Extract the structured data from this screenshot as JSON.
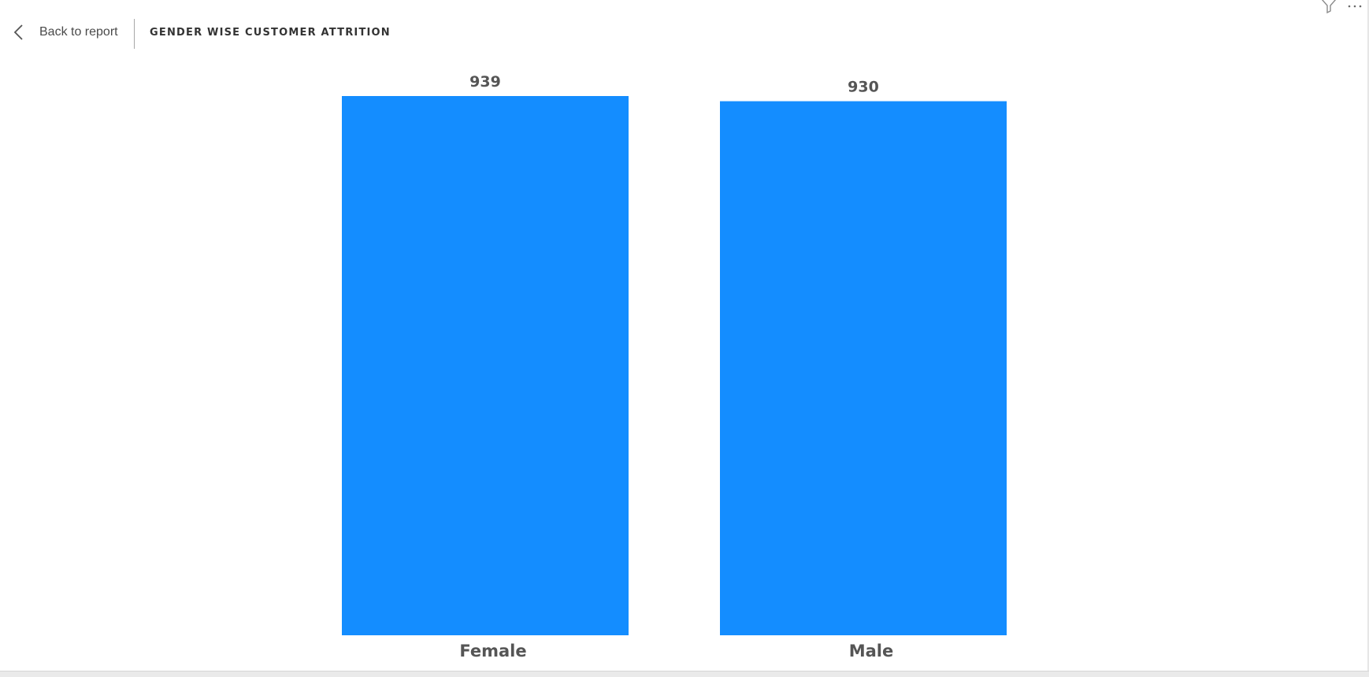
{
  "header": {
    "back_label": "Back to report",
    "title": "GENDER WISE CUSTOMER ATTRITION"
  },
  "icons": {
    "back": "chevron-left-icon",
    "filter": "filter-icon",
    "more": "more-options-icon"
  },
  "colors": {
    "bar": "#148dff",
    "label": "#555555",
    "background": "#ffffff"
  },
  "chart_data": {
    "type": "bar",
    "categories": [
      "Female",
      "Male"
    ],
    "values": [
      939,
      930
    ],
    "title": "GENDER WISE CUSTOMER ATTRITION",
    "xlabel": "",
    "ylabel": "",
    "ylim": [
      0,
      939
    ],
    "grid": false,
    "data_labels": true,
    "legend": "none"
  }
}
